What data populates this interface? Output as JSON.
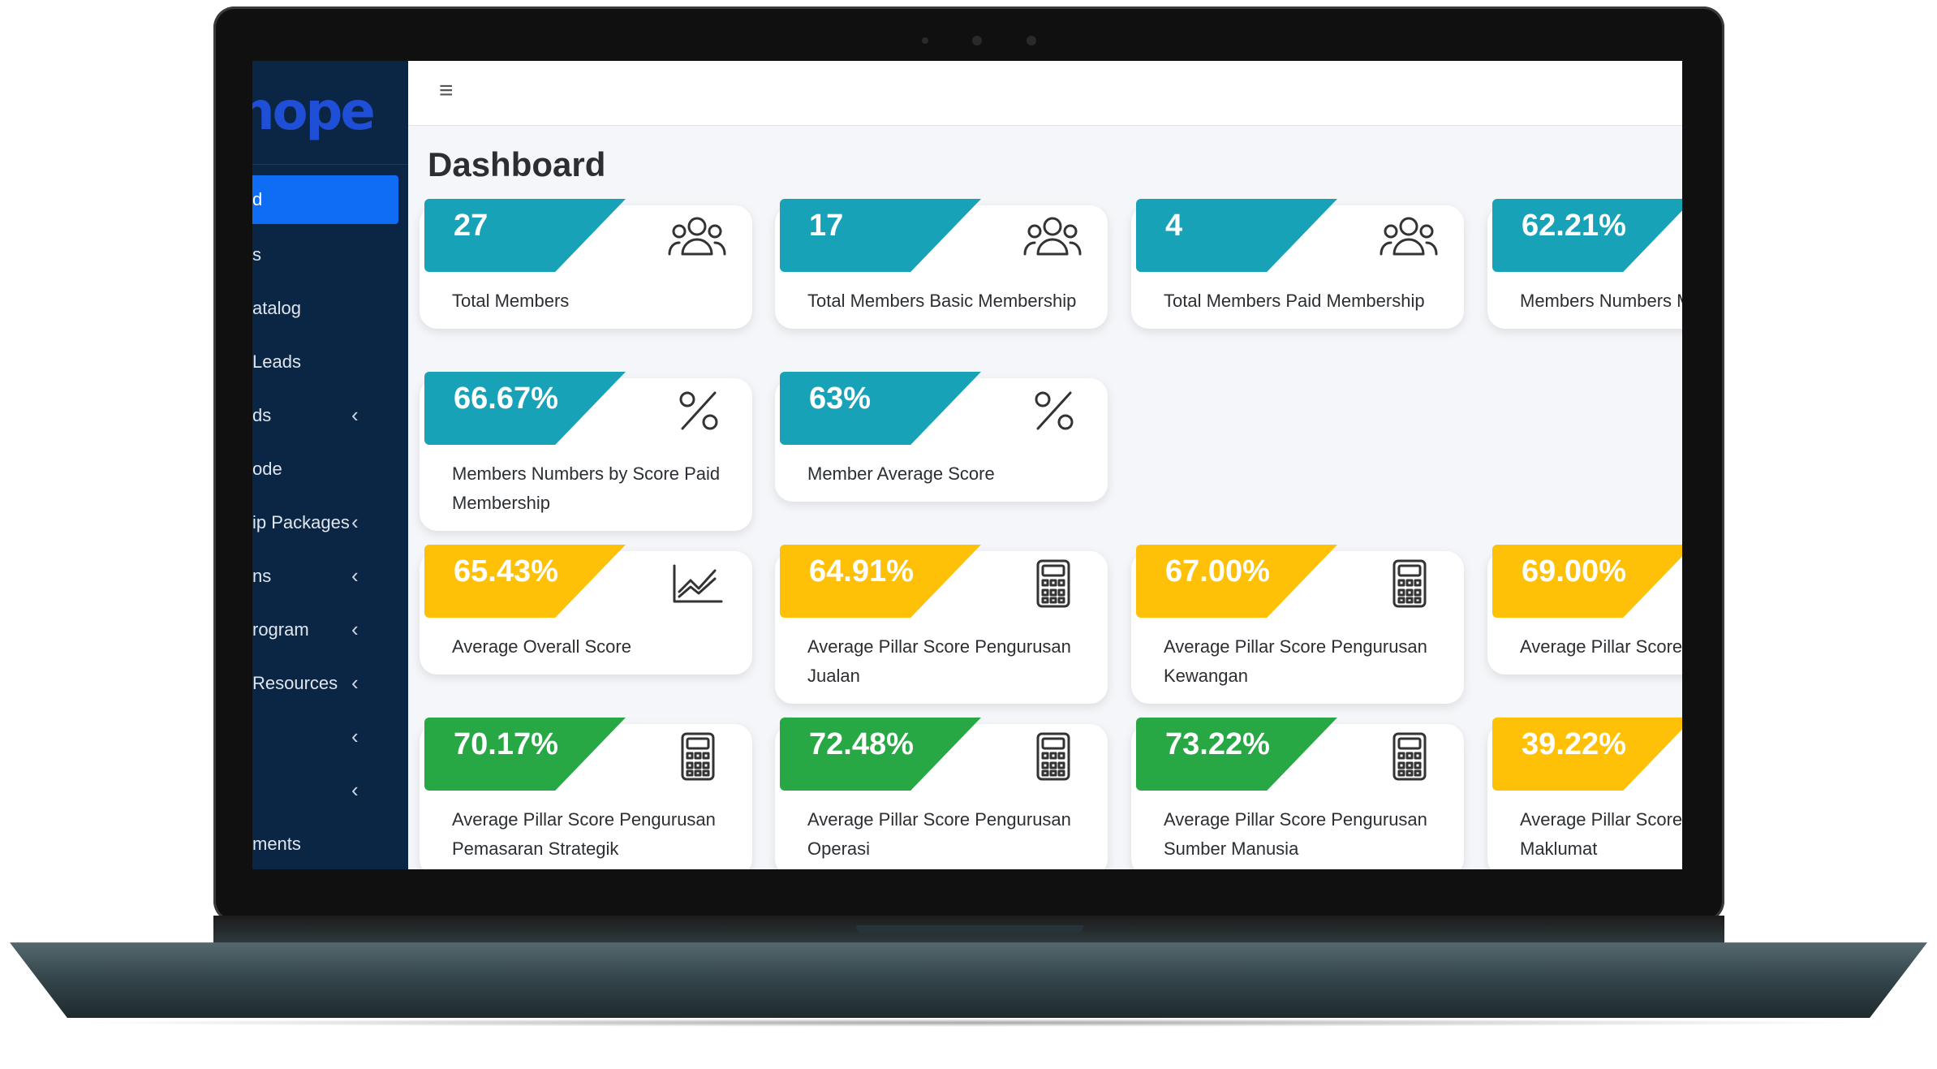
{
  "sidebar": {
    "brand": "nope",
    "items": [
      {
        "label": "d",
        "chevron": false,
        "active": true
      },
      {
        "label": "s",
        "chevron": false
      },
      {
        "label": "atalog",
        "chevron": false
      },
      {
        "label": "Leads",
        "chevron": false
      },
      {
        "label": "ds",
        "chevron": true
      },
      {
        "label": "ode",
        "chevron": false
      },
      {
        "label": "ip Packages",
        "chevron": true
      },
      {
        "label": "ns",
        "chevron": true
      },
      {
        "label": "rogram",
        "chevron": true
      },
      {
        "label": "Resources",
        "chevron": true
      },
      {
        "label": "",
        "chevron": true
      },
      {
        "label": "",
        "chevron": true
      },
      {
        "label": "ments",
        "chevron": false
      }
    ],
    "chevron_glyph": "‹"
  },
  "topbar": {
    "menu_icon": "hamburger-icon"
  },
  "page_title": "Dashboard",
  "colors": {
    "teal": "#17a2b8",
    "yellow": "#ffc107",
    "green": "#28a745",
    "sidebar": "#0b2545",
    "active": "#0f6cf5"
  },
  "cards": [
    {
      "value": "27",
      "title": "Total Members",
      "color": "teal",
      "icon": "users-icon"
    },
    {
      "value": "17",
      "title": "Total Members Basic Membership",
      "color": "teal",
      "icon": "users-icon"
    },
    {
      "value": "4",
      "title": "Total Members Paid Membership",
      "color": "teal",
      "icon": "users-icon"
    },
    {
      "value": "62.21%",
      "title": "Members Numbers Membership",
      "color": "teal",
      "icon": "percent-icon"
    },
    {
      "value": "66.67%",
      "title": "Members Numbers by Score Paid Membership",
      "color": "teal",
      "icon": "percent-icon"
    },
    {
      "value": "63%",
      "title": "Member Average Score",
      "color": "teal",
      "icon": "percent-icon"
    },
    {
      "value": "65.43%",
      "title": "Average Overall Score",
      "color": "yellow",
      "icon": "chart-line-icon"
    },
    {
      "value": "64.91%",
      "title": "Average Pillar Score Pengurusan Jualan",
      "color": "yellow",
      "icon": "calculator-icon"
    },
    {
      "value": "67.00%",
      "title": "Average Pillar Score Pengurusan Kewangan",
      "color": "yellow",
      "icon": "calculator-icon"
    },
    {
      "value": "69.00%",
      "title": "Average Pillar Score Perakaunan",
      "color": "yellow",
      "icon": "calculator-icon"
    },
    {
      "value": "70.17%",
      "title": "Average Pillar Score Pengurusan Pemasaran Strategik",
      "color": "green",
      "icon": "calculator-icon"
    },
    {
      "value": "72.48%",
      "title": "Average Pillar Score Pengurusan Operasi",
      "color": "green",
      "icon": "calculator-icon"
    },
    {
      "value": "73.22%",
      "title": "Average Pillar Score Pengurusan Sumber Manusia",
      "color": "green",
      "icon": "calculator-icon"
    },
    {
      "value": "39.22%",
      "title": "Average Pillar Score Teknologi Maklumat",
      "color": "yellow",
      "icon": "calculator-icon"
    }
  ]
}
